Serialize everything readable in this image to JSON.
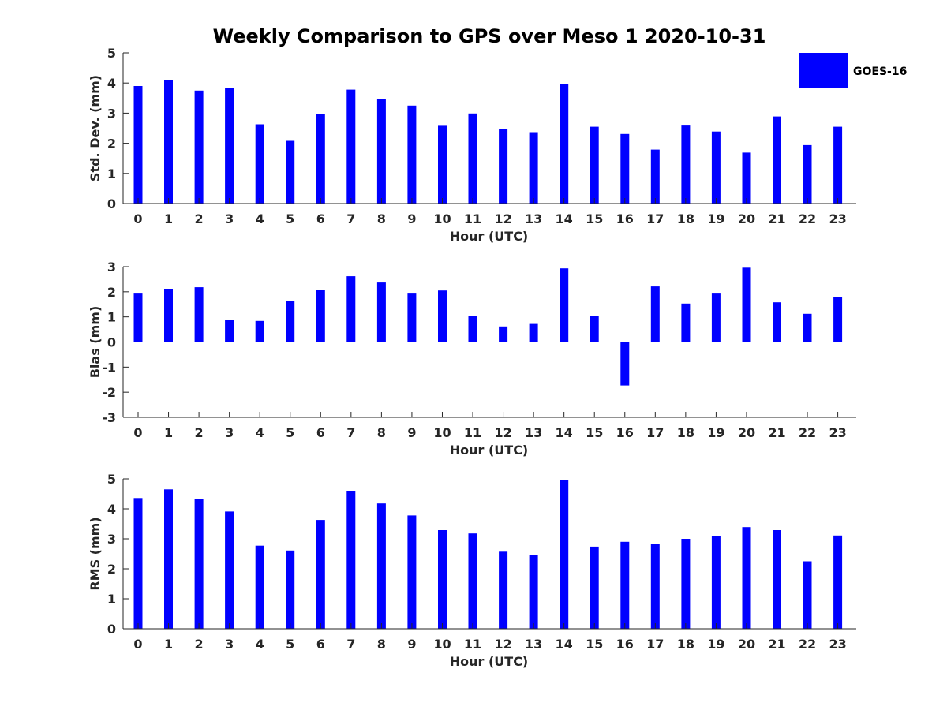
{
  "chart_data": [
    {
      "type": "bar",
      "title": "Weekly Comparison to GPS over Meso 1 2020-10-31",
      "xlabel": "Hour (UTC)",
      "ylabel": "Std. Dev. (mm)",
      "ylim": [
        0,
        5
      ],
      "yticks": [
        0,
        1,
        2,
        3,
        4,
        5
      ],
      "categories": [
        "0",
        "1",
        "2",
        "3",
        "4",
        "5",
        "6",
        "7",
        "8",
        "9",
        "10",
        "11",
        "12",
        "13",
        "14",
        "15",
        "16",
        "17",
        "18",
        "19",
        "20",
        "21",
        "22",
        "23"
      ],
      "series": [
        {
          "name": "GOES-16",
          "color": "#0000ff",
          "values": [
            3.9,
            4.1,
            3.75,
            3.83,
            2.63,
            2.08,
            2.96,
            3.78,
            3.46,
            3.25,
            2.58,
            2.99,
            2.47,
            2.37,
            3.98,
            2.55,
            2.31,
            1.79,
            2.59,
            2.39,
            1.69,
            2.89,
            1.94,
            2.55
          ]
        }
      ],
      "legend": {
        "position": "top-right"
      }
    },
    {
      "type": "bar",
      "title": "",
      "xlabel": "Hour (UTC)",
      "ylabel": "Bias (mm)",
      "ylim": [
        -3,
        3
      ],
      "yticks": [
        -3,
        -2,
        -1,
        0,
        1,
        2,
        3
      ],
      "categories": [
        "0",
        "1",
        "2",
        "3",
        "4",
        "5",
        "6",
        "7",
        "8",
        "9",
        "10",
        "11",
        "12",
        "13",
        "14",
        "15",
        "16",
        "17",
        "18",
        "19",
        "20",
        "21",
        "22",
        "23"
      ],
      "series": [
        {
          "name": "GOES-16",
          "color": "#0000ff",
          "values": [
            1.93,
            2.12,
            2.18,
            0.87,
            0.84,
            1.62,
            2.08,
            2.62,
            2.37,
            1.93,
            2.05,
            1.05,
            0.62,
            0.72,
            2.93,
            1.02,
            -1.73,
            2.21,
            1.53,
            1.93,
            2.96,
            1.58,
            1.12,
            1.78
          ]
        }
      ],
      "zero_line": true
    },
    {
      "type": "bar",
      "title": "",
      "xlabel": "Hour (UTC)",
      "ylabel": "RMS (mm)",
      "ylim": [
        0,
        5
      ],
      "yticks": [
        0,
        1,
        2,
        3,
        4,
        5
      ],
      "categories": [
        "0",
        "1",
        "2",
        "3",
        "4",
        "5",
        "6",
        "7",
        "8",
        "9",
        "10",
        "11",
        "12",
        "13",
        "14",
        "15",
        "16",
        "17",
        "18",
        "19",
        "20",
        "21",
        "22",
        "23"
      ],
      "series": [
        {
          "name": "GOES-16",
          "color": "#0000ff",
          "values": [
            4.36,
            4.65,
            4.33,
            3.91,
            2.77,
            2.61,
            3.63,
            4.6,
            4.18,
            3.78,
            3.29,
            3.18,
            2.57,
            2.46,
            4.97,
            2.74,
            2.9,
            2.84,
            3.0,
            3.08,
            3.39,
            3.29,
            2.25,
            3.11
          ]
        }
      ]
    }
  ]
}
